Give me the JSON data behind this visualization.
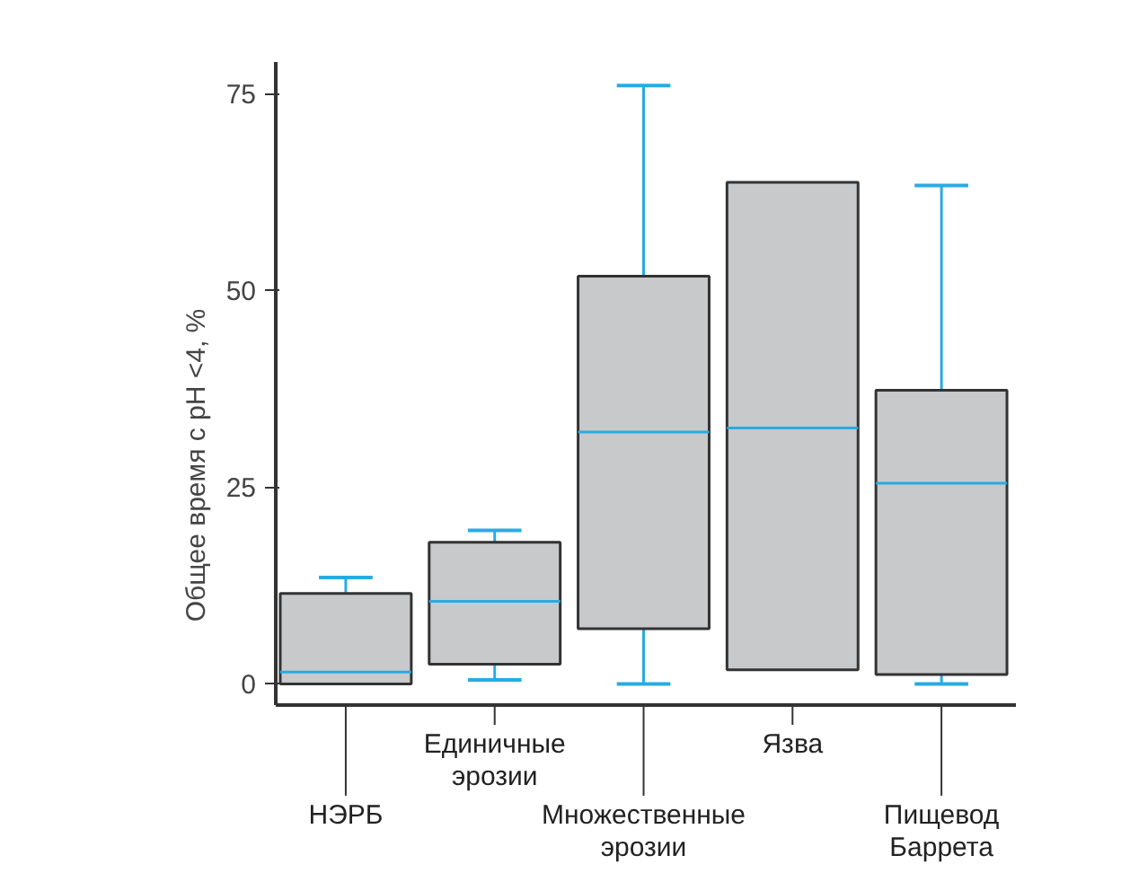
{
  "chart_data": {
    "type": "box",
    "ylabel": "Общее время с pH <4, %",
    "categories": [
      "НЭРБ",
      "Единичные\nэрозии",
      "Множественные\nэрозии",
      "Язва",
      "Пищевод\nБаррета"
    ],
    "ylim": [
      -2.7,
      79
    ],
    "yticks": [
      0,
      25,
      50,
      75
    ],
    "grid": false,
    "series": [
      {
        "color": "#c8c9cb",
        "boxes": [
          {
            "low": 0,
            "q1": 0,
            "median": 1.5,
            "q3": 11.5,
            "high": 13.5
          },
          {
            "low": 0.5,
            "q1": 2.5,
            "median": 10.5,
            "q3": 18,
            "high": 19.5
          },
          {
            "low": 0,
            "q1": 7,
            "median": 32,
            "q3": 51.8,
            "high": 76
          },
          {
            "low": 1.8,
            "q1": 1.8,
            "median": 32.5,
            "q3": 63.7,
            "high": 63.7
          },
          {
            "low": 0,
            "q1": 1.2,
            "median": 25.5,
            "q3": 37.3,
            "high": 63.3
          }
        ]
      }
    ]
  }
}
